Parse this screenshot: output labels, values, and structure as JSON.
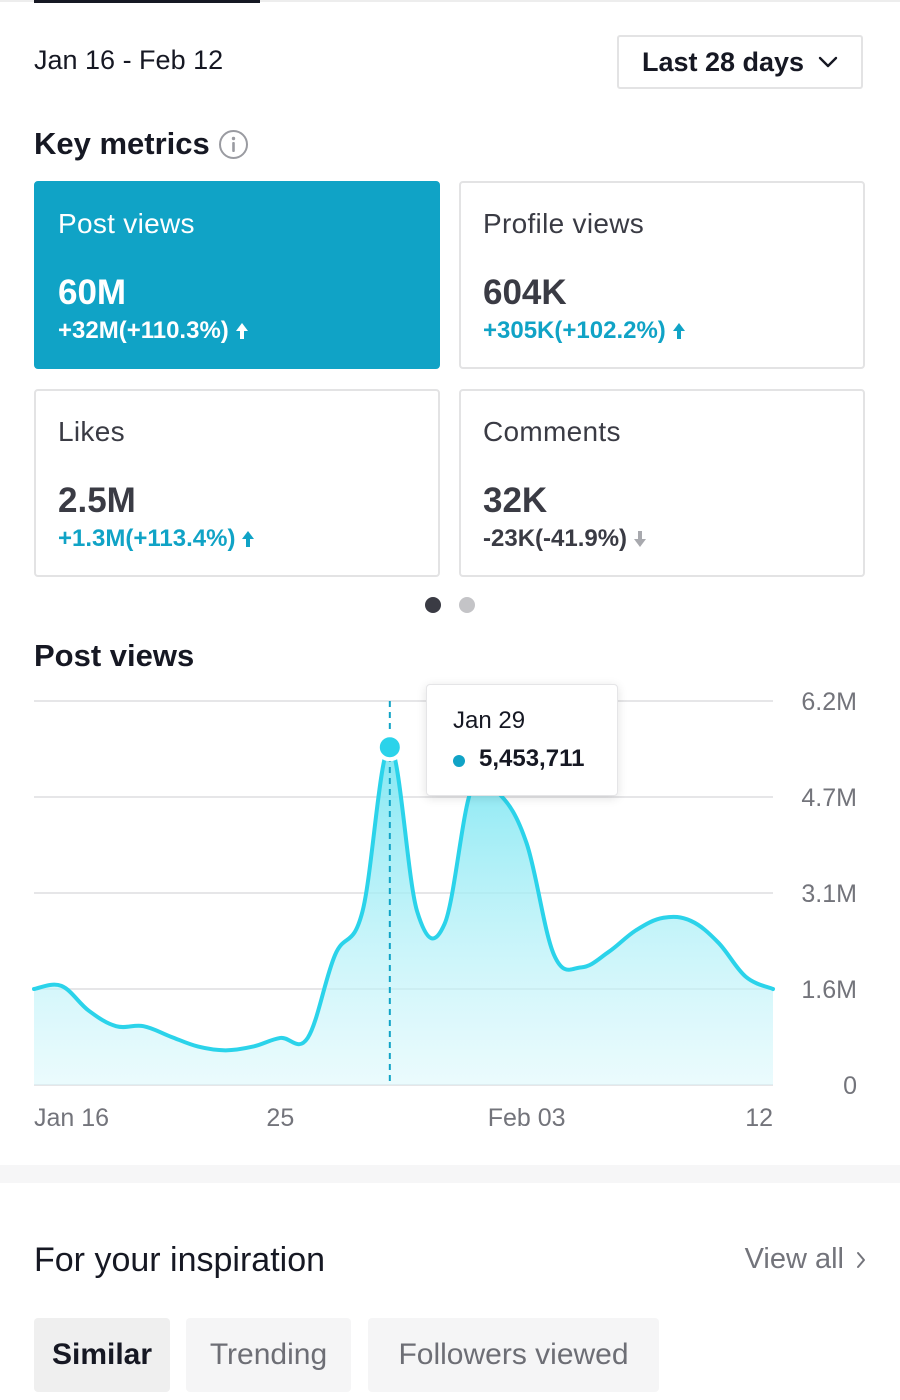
{
  "header": {
    "date_range": "Jan 16 - Feb 12",
    "period_selector": "Last 28 days"
  },
  "key_metrics": {
    "title": "Key metrics",
    "cards": [
      {
        "label": "Post views",
        "value": "60M",
        "delta": "+32M(+110.3%)",
        "trend": "up",
        "selected": true
      },
      {
        "label": "Profile views",
        "value": "604K",
        "delta": "+305K(+102.2%)",
        "trend": "up",
        "selected": false
      },
      {
        "label": "Likes",
        "value": "2.5M",
        "delta": "+1.3M(+113.4%)",
        "trend": "up",
        "selected": false
      },
      {
        "label": "Comments",
        "value": "32K",
        "delta": "-23K(-41.9%)",
        "trend": "down",
        "selected": false
      }
    ],
    "pager": {
      "pages": 2,
      "current": 1
    }
  },
  "post_views_chart": {
    "title": "Post views",
    "tooltip": {
      "date": "Jan 29",
      "value": "5,453,711"
    }
  },
  "chart_data": {
    "type": "area",
    "title": "Post views",
    "x_tick_labels": [
      "Jan 16",
      "25",
      "Feb 03",
      "12"
    ],
    "y_tick_labels": [
      "6.2M",
      "4.7M",
      "3.1M",
      "1.6M",
      "0"
    ],
    "ylim": [
      0,
      6200000
    ],
    "grid": true,
    "color": "#2bd3ea",
    "x": [
      "Jan 16",
      "Jan 17",
      "Jan 18",
      "Jan 19",
      "Jan 20",
      "Jan 21",
      "Jan 22",
      "Jan 23",
      "Jan 24",
      "Jan 25",
      "Jan 26",
      "Jan 27",
      "Jan 28",
      "Jan 29",
      "Jan 30",
      "Jan 31",
      "Feb 01",
      "Feb 02",
      "Feb 03",
      "Feb 04",
      "Feb 05",
      "Feb 06",
      "Feb 07",
      "Feb 08",
      "Feb 09",
      "Feb 10",
      "Feb 11",
      "Feb 12"
    ],
    "values": [
      1550000,
      1600000,
      1200000,
      950000,
      950000,
      780000,
      620000,
      560000,
      620000,
      760000,
      760000,
      2100000,
      2800000,
      5453711,
      2800000,
      2600000,
      4800000,
      4700000,
      3900000,
      2100000,
      1900000,
      2150000,
      2500000,
      2700000,
      2650000,
      2300000,
      1750000,
      1550000
    ],
    "highlight": {
      "x": "Jan 29",
      "value": 5453711
    }
  },
  "inspiration": {
    "title": "For your inspiration",
    "view_all": "View all",
    "chips": [
      "Similar",
      "Trending",
      "Followers viewed"
    ],
    "selected_chip": "Similar"
  },
  "colors": {
    "accent": "#10a3c6",
    "line": "#2bd3ea",
    "text": "#161823",
    "muted": "#73747b"
  }
}
